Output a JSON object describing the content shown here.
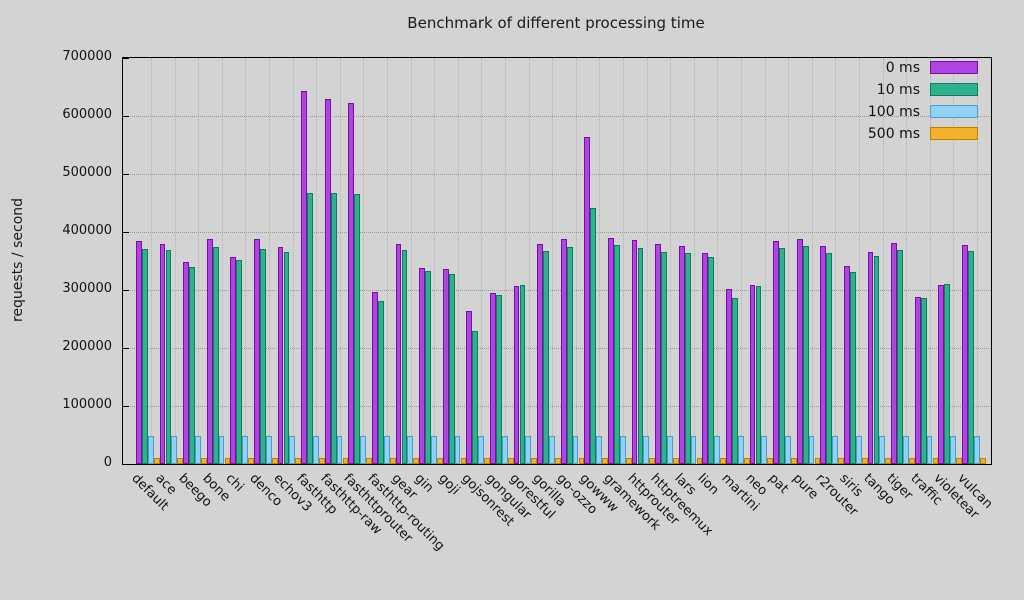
{
  "chart_data": {
    "type": "bar",
    "title": "Benchmark of different processing time",
    "xlabel": "",
    "ylabel": "requests / second",
    "ylim": [
      0,
      700000
    ],
    "ytick_step": 100000,
    "grid": true,
    "legend_position": "top-right",
    "categories": [
      "default",
      "ace",
      "beego",
      "bone",
      "chi",
      "denco",
      "echov3",
      "fasthttp",
      "fasthttp-raw",
      "fasthttprouter",
      "fasthttp-routing",
      "gear",
      "gin",
      "goji",
      "gojsonrest",
      "gongular",
      "gorestful",
      "gorilla",
      "go-ozzo",
      "gowww",
      "gramework",
      "httprouter",
      "httptreemux",
      "lars",
      "lion",
      "martini",
      "neo",
      "pat",
      "pure",
      "r2router",
      "siris",
      "tango",
      "tiger",
      "traffic",
      "violetear",
      "vulcan"
    ],
    "series": [
      {
        "name": "0 ms",
        "color": "#b044e0",
        "border": "#7a0da6",
        "values": [
          385000,
          379000,
          348000,
          388000,
          357000,
          388000,
          374000,
          643000,
          629000,
          622000,
          296000,
          379000,
          338000,
          336000,
          264000,
          295000,
          307000,
          379000,
          388000,
          564000,
          390000,
          386000,
          379000,
          376000,
          363000,
          302000,
          309000,
          384000,
          388000,
          376000,
          341000,
          366000,
          381000,
          288000,
          309000,
          378000
        ]
      },
      {
        "name": "10 ms",
        "color": "#2eb28e",
        "border": "#0b7f5c",
        "values": [
          371000,
          369000,
          340000,
          374000,
          352000,
          371000,
          366000,
          467000,
          467000,
          465000,
          281000,
          369000,
          333000,
          328000,
          229000,
          291000,
          309000,
          367000,
          374000,
          441000,
          377000,
          372000,
          366000,
          364000,
          357000,
          286000,
          307000,
          372000,
          376000,
          363000,
          331000,
          358000,
          369000,
          286000,
          310000,
          367000
        ]
      },
      {
        "name": "100 ms",
        "color": "#90d2f3",
        "border": "#4d9cc9",
        "values": [
          48000,
          48000,
          48000,
          48000,
          48000,
          48000,
          48000,
          48000,
          48000,
          48000,
          48000,
          48000,
          48000,
          48000,
          48000,
          48000,
          48000,
          48000,
          48000,
          48000,
          48000,
          48000,
          48000,
          48000,
          48000,
          48000,
          48000,
          48000,
          48000,
          48000,
          48000,
          48000,
          48000,
          48000,
          48000,
          48000
        ]
      },
      {
        "name": "500 ms",
        "color": "#f2b32b",
        "border": "#bb8200",
        "values": [
          10000,
          10000,
          10000,
          10000,
          10000,
          10000,
          10000,
          10000,
          10000,
          10000,
          10000,
          10000,
          10000,
          10000,
          10000,
          10000,
          10000,
          10000,
          10000,
          10000,
          10000,
          10000,
          10000,
          10000,
          10000,
          10000,
          10000,
          10000,
          10000,
          10000,
          10000,
          10000,
          10000,
          10000,
          10000,
          10000
        ]
      }
    ]
  }
}
